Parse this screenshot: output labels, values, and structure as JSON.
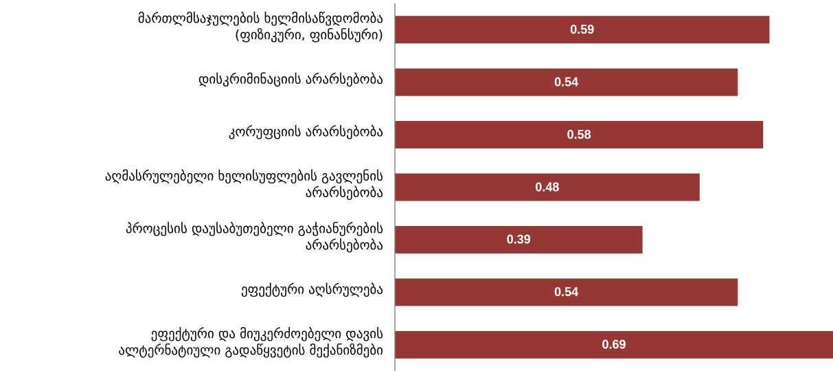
{
  "chart_data": {
    "type": "bar",
    "orientation": "horizontal",
    "categories": [
      "მართლმსაჯულების ხელმისაწვდომობა\n(ფიზიკური, ფინანსური)",
      "დისკრიმინაციის არარსებობა",
      "კორუფციის არარსებობა",
      "აღმასრულებელი ხელისუფლების გავლენის\nარარსებობა",
      "პროცესის დაუსაბუთებელი გაჭიანურების\nარარსებობა",
      "ეფექტური აღსრულება",
      "ეფექტური და მიუკერძოებელი დავის\nალტერნატიული გადაწყვეტის მექანიზმები"
    ],
    "values": [
      0.59,
      0.54,
      0.58,
      0.48,
      0.39,
      0.54,
      0.69
    ],
    "color": "#953735",
    "xlim": [
      0,
      0.69
    ]
  }
}
